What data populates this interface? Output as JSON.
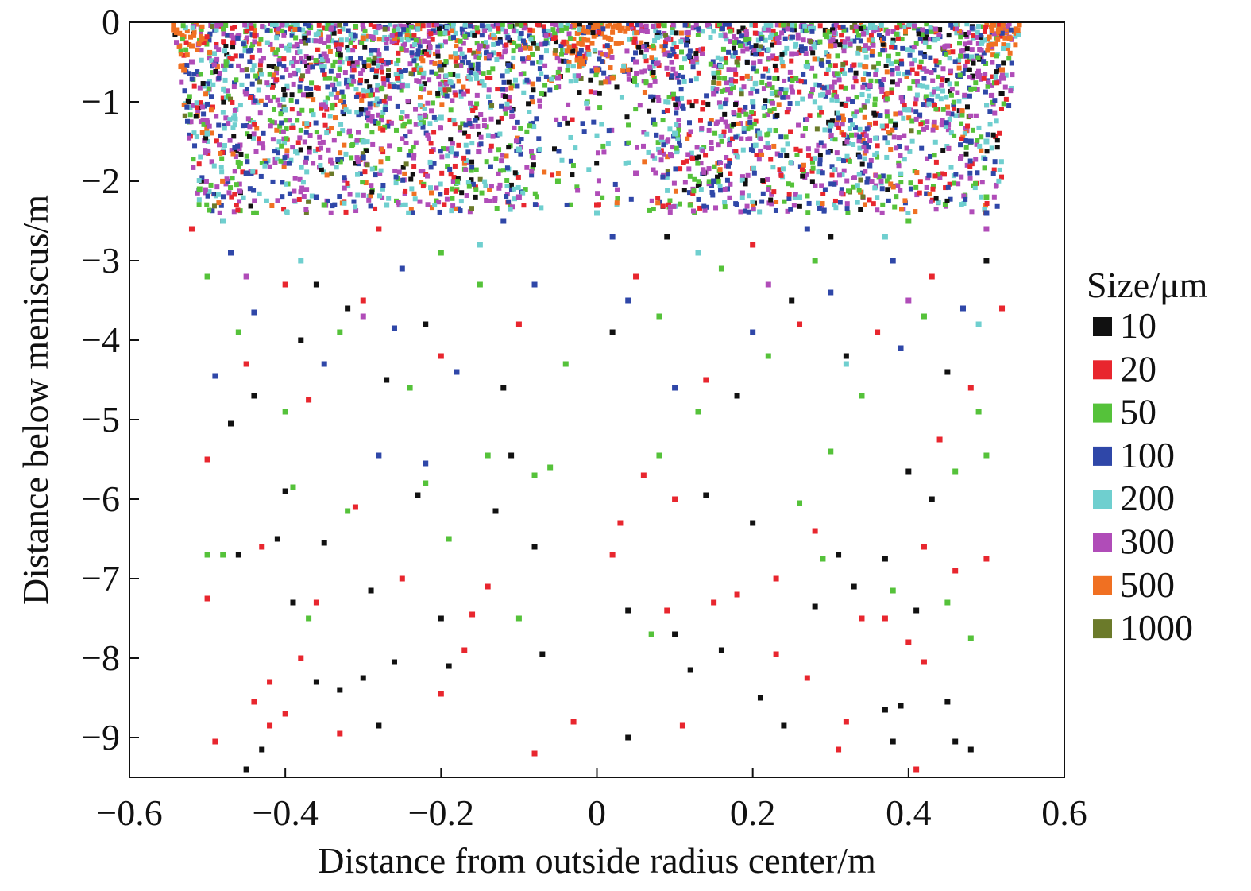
{
  "chart_data": {
    "type": "scatter",
    "title": "",
    "xlabel": "Distance from outside radius center/m",
    "ylabel": "Distance below meniscus/m",
    "xlim": [
      -0.6,
      0.6
    ],
    "ylim": [
      -9.5,
      0
    ],
    "x_ticks": [
      -0.6,
      -0.4,
      -0.2,
      0,
      0.2,
      0.4,
      0.6
    ],
    "x_tick_labels": [
      "−0.6",
      "−0.4",
      "−0.2",
      "0",
      "0.2",
      "0.4",
      "0.6"
    ],
    "y_ticks": [
      0,
      -1,
      -2,
      -3,
      -4,
      -5,
      -6,
      -7,
      -8,
      -9
    ],
    "y_tick_labels": [
      "0",
      "−1",
      "−2",
      "−3",
      "−4",
      "−5",
      "−6",
      "−7",
      "−8",
      "−9"
    ],
    "grid": false,
    "legend": {
      "title": "Size/μm",
      "placement": "right",
      "entries": [
        {
          "label": "10",
          "color": "#111111"
        },
        {
          "label": "20",
          "color": "#e8262e"
        },
        {
          "label": "50",
          "color": "#55c23a"
        },
        {
          "label": "100",
          "color": "#2f47a8"
        },
        {
          "label": "200",
          "color": "#6fcfcf"
        },
        {
          "label": "300",
          "color": "#b04cb8"
        },
        {
          "label": "500",
          "color": "#f07022"
        },
        {
          "label": "1000",
          "color": "#6b7a2a"
        }
      ]
    },
    "series": [
      {
        "name": "10",
        "color": "#111111",
        "points": [
          [
            -0.46,
            -6.7
          ],
          [
            -0.45,
            -9.4
          ],
          [
            -0.43,
            -9.15
          ],
          [
            -0.41,
            -6.5
          ],
          [
            -0.39,
            -7.3
          ],
          [
            -0.36,
            -8.3
          ],
          [
            -0.33,
            -8.4
          ],
          [
            -0.3,
            -8.25
          ],
          [
            -0.28,
            -8.85
          ],
          [
            -0.26,
            -8.05
          ],
          [
            -0.2,
            -7.5
          ],
          [
            -0.19,
            -8.1
          ],
          [
            -0.13,
            -6.15
          ],
          [
            -0.11,
            -5.45
          ],
          [
            -0.08,
            -6.6
          ],
          [
            -0.07,
            -7.95
          ],
          [
            0.04,
            -7.4
          ],
          [
            0.04,
            -9.0
          ],
          [
            0.1,
            -7.7
          ],
          [
            0.16,
            -7.9
          ],
          [
            0.2,
            -6.3
          ],
          [
            0.21,
            -8.5
          ],
          [
            0.24,
            -8.85
          ],
          [
            0.28,
            -7.35
          ],
          [
            0.31,
            -6.7
          ],
          [
            0.33,
            -7.1
          ],
          [
            0.37,
            -8.65
          ],
          [
            0.38,
            -9.05
          ],
          [
            0.39,
            -8.6
          ],
          [
            0.41,
            -7.4
          ],
          [
            0.45,
            -8.55
          ],
          [
            0.46,
            -9.05
          ],
          [
            0.48,
            -9.15
          ],
          [
            -0.47,
            -5.05
          ],
          [
            -0.4,
            -5.9
          ],
          [
            -0.35,
            -6.55
          ],
          [
            -0.29,
            -7.15
          ],
          [
            -0.23,
            -5.95
          ],
          [
            0.12,
            -8.15
          ],
          [
            0.14,
            -5.95
          ],
          [
            0.37,
            -6.75
          ],
          [
            0.4,
            -5.65
          ],
          [
            0.43,
            -6.0
          ],
          [
            -0.44,
            -4.7
          ],
          [
            -0.38,
            -4.0
          ],
          [
            -0.32,
            -3.6
          ],
          [
            -0.27,
            -4.5
          ],
          [
            -0.12,
            -4.6
          ],
          [
            0.02,
            -3.9
          ],
          [
            0.09,
            -2.7
          ],
          [
            0.18,
            -4.7
          ],
          [
            0.25,
            -3.5
          ],
          [
            0.32,
            -4.2
          ],
          [
            0.45,
            -4.4
          ],
          [
            0.5,
            -3.0
          ],
          [
            -0.48,
            -2.5
          ],
          [
            -0.36,
            -3.3
          ],
          [
            -0.22,
            -3.8
          ],
          [
            0.3,
            -2.7
          ]
        ]
      },
      {
        "name": "20",
        "color": "#e8262e",
        "points": [
          [
            -0.5,
            -7.25
          ],
          [
            -0.49,
            -9.05
          ],
          [
            -0.44,
            -8.55
          ],
          [
            -0.42,
            -8.3
          ],
          [
            -0.42,
            -8.85
          ],
          [
            -0.4,
            -8.7
          ],
          [
            -0.38,
            -8.0
          ],
          [
            -0.36,
            -7.3
          ],
          [
            -0.33,
            -8.95
          ],
          [
            -0.25,
            -7.0
          ],
          [
            -0.2,
            -8.45
          ],
          [
            -0.17,
            -7.9
          ],
          [
            -0.14,
            -7.1
          ],
          [
            -0.08,
            -9.2
          ],
          [
            -0.03,
            -8.8
          ],
          [
            0.02,
            -6.7
          ],
          [
            0.03,
            -6.3
          ],
          [
            0.09,
            -7.4
          ],
          [
            0.11,
            -8.85
          ],
          [
            0.15,
            -7.3
          ],
          [
            0.18,
            -7.2
          ],
          [
            0.23,
            -7.0
          ],
          [
            0.23,
            -7.95
          ],
          [
            0.27,
            -8.25
          ],
          [
            0.31,
            -9.15
          ],
          [
            0.32,
            -8.8
          ],
          [
            0.34,
            -7.5
          ],
          [
            0.37,
            -7.5
          ],
          [
            0.4,
            -7.8
          ],
          [
            0.41,
            -9.4
          ],
          [
            0.42,
            -6.6
          ],
          [
            0.42,
            -8.05
          ],
          [
            0.46,
            -6.9
          ],
          [
            0.5,
            -6.75
          ],
          [
            -0.43,
            -6.6
          ],
          [
            -0.37,
            -4.75
          ],
          [
            -0.31,
            -6.1
          ],
          [
            -0.16,
            -7.45
          ],
          [
            0.06,
            -5.7
          ],
          [
            0.1,
            -6.0
          ],
          [
            0.28,
            -6.4
          ],
          [
            0.44,
            -5.25
          ],
          [
            -0.5,
            -5.5
          ],
          [
            -0.45,
            -4.3
          ],
          [
            -0.3,
            -3.5
          ],
          [
            -0.2,
            -4.2
          ],
          [
            -0.1,
            -3.8
          ],
          [
            0.05,
            -3.2
          ],
          [
            0.14,
            -4.5
          ],
          [
            0.26,
            -3.8
          ],
          [
            0.36,
            -3.9
          ],
          [
            0.48,
            -4.6
          ],
          [
            -0.52,
            -2.6
          ],
          [
            -0.4,
            -3.3
          ],
          [
            -0.28,
            -2.6
          ],
          [
            0.0,
            -2.3
          ],
          [
            0.2,
            -2.8
          ],
          [
            0.43,
            -3.2
          ],
          [
            0.52,
            -3.6
          ]
        ]
      },
      {
        "name": "50",
        "color": "#55c23a",
        "points": [
          [
            -0.5,
            -6.7
          ],
          [
            -0.48,
            -6.7
          ],
          [
            -0.37,
            -7.5
          ],
          [
            -0.22,
            -5.8
          ],
          [
            -0.19,
            -6.5
          ],
          [
            -0.1,
            -7.5
          ],
          [
            -0.08,
            -5.7
          ],
          [
            0.07,
            -7.7
          ],
          [
            0.08,
            -5.45
          ],
          [
            0.26,
            -6.05
          ],
          [
            0.29,
            -6.75
          ],
          [
            0.38,
            -7.15
          ],
          [
            0.45,
            -7.3
          ],
          [
            0.48,
            -7.75
          ],
          [
            0.46,
            -5.65
          ],
          [
            -0.39,
            -5.85
          ],
          [
            -0.32,
            -6.15
          ],
          [
            -0.14,
            -5.45
          ],
          [
            -0.06,
            -5.6
          ],
          [
            0.13,
            -4.9
          ],
          [
            0.3,
            -5.4
          ],
          [
            0.5,
            -5.45
          ],
          [
            -0.46,
            -3.9
          ],
          [
            -0.4,
            -4.9
          ],
          [
            -0.33,
            -3.9
          ],
          [
            -0.24,
            -4.6
          ],
          [
            -0.15,
            -3.3
          ],
          [
            -0.04,
            -4.3
          ],
          [
            0.08,
            -3.7
          ],
          [
            0.16,
            -3.1
          ],
          [
            0.22,
            -4.2
          ],
          [
            0.34,
            -4.7
          ],
          [
            0.42,
            -3.7
          ],
          [
            0.49,
            -4.9
          ],
          [
            -0.5,
            -3.2
          ],
          [
            -0.35,
            -2.3
          ],
          [
            -0.2,
            -2.9
          ],
          [
            -0.05,
            -2.0
          ],
          [
            0.12,
            -2.3
          ],
          [
            0.28,
            -3.0
          ],
          [
            0.4,
            -2.5
          ],
          [
            -0.51,
            -2.1
          ],
          [
            0.5,
            -2.2
          ]
        ]
      },
      {
        "name": "100",
        "color": "#2f47a8",
        "points": [
          [
            -0.28,
            -5.45
          ],
          [
            -0.22,
            -5.55
          ],
          [
            -0.49,
            -4.45
          ],
          [
            -0.44,
            -3.65
          ],
          [
            -0.35,
            -4.3
          ],
          [
            -0.26,
            -3.85
          ],
          [
            -0.18,
            -4.4
          ],
          [
            -0.08,
            -3.3
          ],
          [
            0.04,
            -3.5
          ],
          [
            0.1,
            -4.6
          ],
          [
            0.2,
            -3.9
          ],
          [
            0.3,
            -3.4
          ],
          [
            0.39,
            -4.1
          ],
          [
            0.47,
            -3.6
          ],
          [
            -0.47,
            -2.9
          ],
          [
            -0.36,
            -2.2
          ],
          [
            -0.25,
            -3.1
          ],
          [
            -0.12,
            -2.5
          ],
          [
            0.02,
            -2.7
          ],
          [
            0.15,
            -2.0
          ],
          [
            0.27,
            -2.6
          ],
          [
            0.38,
            -3.0
          ],
          [
            0.5,
            -2.4
          ],
          [
            -0.45,
            -1.9
          ],
          [
            -0.3,
            -1.7
          ],
          [
            0.35,
            -1.8
          ],
          [
            0.48,
            -1.5
          ]
        ]
      },
      {
        "name": "200",
        "color": "#6fcfcf",
        "points": [
          [
            -0.48,
            -2.5
          ],
          [
            -0.38,
            -3.0
          ],
          [
            -0.27,
            -2.3
          ],
          [
            -0.15,
            -2.8
          ],
          [
            0.0,
            -2.4
          ],
          [
            0.13,
            -2.9
          ],
          [
            0.26,
            -2.2
          ],
          [
            0.37,
            -2.7
          ],
          [
            0.49,
            -3.8
          ],
          [
            -0.5,
            -1.4
          ],
          [
            -0.4,
            -1.1
          ],
          [
            -0.3,
            -1.5
          ],
          [
            -0.2,
            -1.2
          ],
          [
            -0.1,
            -1.6
          ],
          [
            0.1,
            -1.4
          ],
          [
            0.2,
            -1.0
          ],
          [
            0.3,
            -1.3
          ],
          [
            0.4,
            -1.1
          ],
          [
            0.5,
            -1.5
          ],
          [
            0.32,
            -4.3
          ]
        ]
      },
      {
        "name": "300",
        "color": "#b04cb8",
        "points": [
          [
            -0.52,
            -0.5
          ],
          [
            -0.45,
            -0.9
          ],
          [
            -0.35,
            -0.4
          ],
          [
            -0.25,
            -0.8
          ],
          [
            -0.15,
            -0.3
          ],
          [
            -0.05,
            -0.7
          ],
          [
            0.05,
            -0.5
          ],
          [
            0.15,
            -0.9
          ],
          [
            0.25,
            -0.4
          ],
          [
            0.35,
            -0.8
          ],
          [
            0.45,
            -0.3
          ],
          [
            0.52,
            -0.7
          ],
          [
            -0.45,
            -3.2
          ],
          [
            -0.3,
            -3.7
          ],
          [
            -0.1,
            -2.2
          ],
          [
            0.05,
            -1.9
          ],
          [
            0.22,
            -3.3
          ],
          [
            0.4,
            -3.5
          ],
          [
            0.5,
            -2.6
          ]
        ]
      },
      {
        "name": "500",
        "color": "#f07022",
        "points": [
          [
            -0.54,
            -0.1
          ],
          [
            -0.53,
            -0.6
          ],
          [
            -0.52,
            -0.3
          ],
          [
            -0.02,
            -0.5
          ],
          [
            0.0,
            -0.6
          ],
          [
            0.02,
            -0.7
          ],
          [
            0.52,
            -0.6
          ],
          [
            0.53,
            -0.2
          ],
          [
            0.54,
            -0.1
          ],
          [
            -0.3,
            -0.2
          ],
          [
            0.3,
            -0.3
          ]
        ]
      },
      {
        "name": "1000",
        "color": "#6b7a2a",
        "points": [
          [
            -0.2,
            -0.6
          ],
          [
            0.18,
            -0.5
          ]
        ]
      }
    ]
  }
}
